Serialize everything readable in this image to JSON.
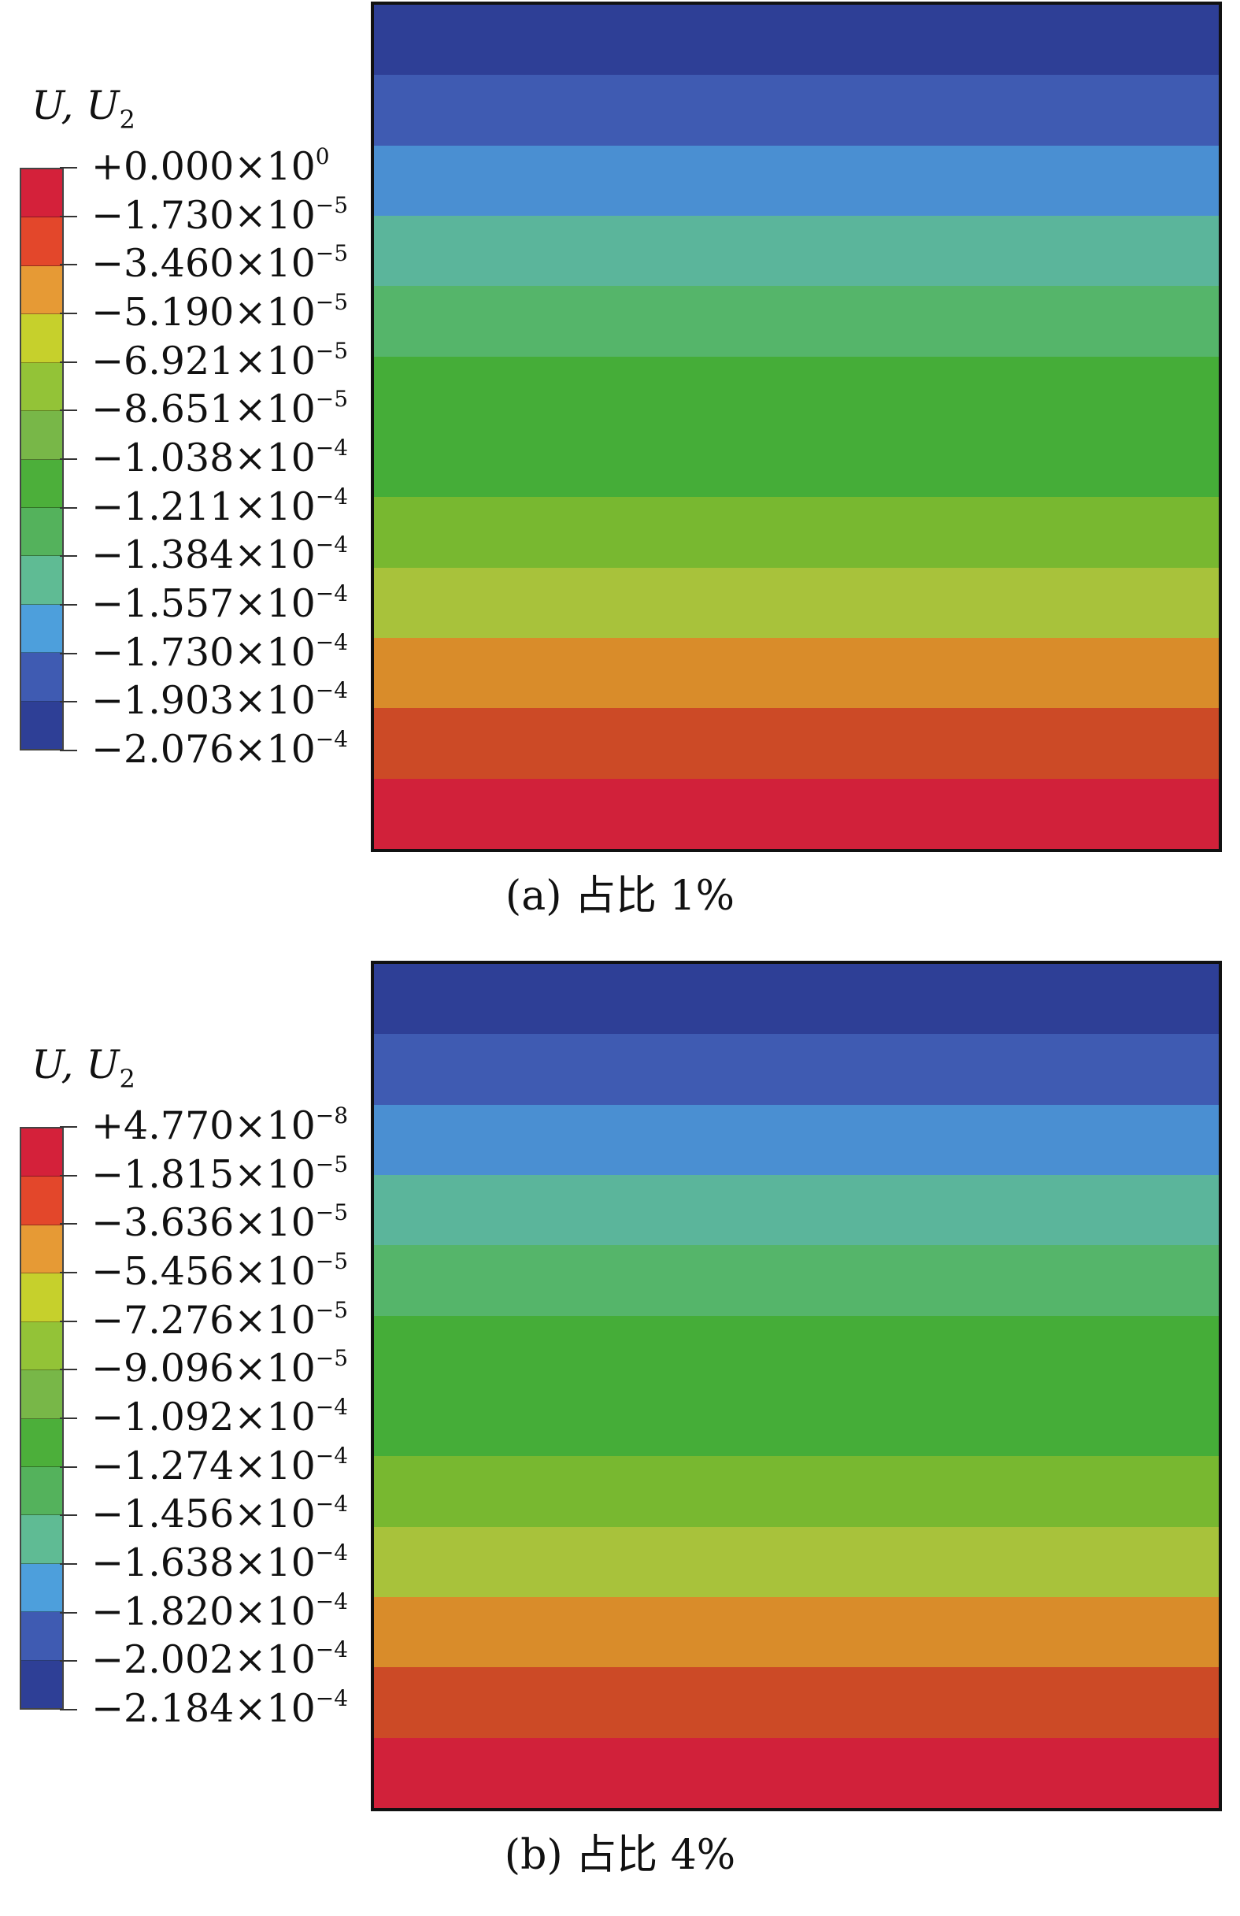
{
  "palette": [
    "#d4213a",
    "#e3472b",
    "#e69a35",
    "#c6d02c",
    "#93c337",
    "#78b748",
    "#4caf3a",
    "#54b25c",
    "#5fbb94",
    "#4d9fdc",
    "#3f5bb2",
    "#2e3f96"
  ],
  "panels": [
    {
      "legend_title": {
        "main": "U, U",
        "sub": "2"
      },
      "tick_labels": [
        {
          "mantissa": "+0.000×10",
          "exponent": "0"
        },
        {
          "mantissa": "−1.730×10",
          "exponent": "−5"
        },
        {
          "mantissa": "−3.460×10",
          "exponent": "−5"
        },
        {
          "mantissa": "−5.190×10",
          "exponent": "−5"
        },
        {
          "mantissa": "−6.921×10",
          "exponent": "−5"
        },
        {
          "mantissa": "−8.651×10",
          "exponent": "−5"
        },
        {
          "mantissa": "−1.038×10",
          "exponent": "−4"
        },
        {
          "mantissa": "−1.211×10",
          "exponent": "−4"
        },
        {
          "mantissa": "−1.384×10",
          "exponent": "−4"
        },
        {
          "mantissa": "−1.557×10",
          "exponent": "−4"
        },
        {
          "mantissa": "−1.730×10",
          "exponent": "−4"
        },
        {
          "mantissa": "−1.903×10",
          "exponent": "−4"
        },
        {
          "mantissa": "−2.076×10",
          "exponent": "−4"
        }
      ],
      "bands_top_to_bottom": [
        "#2e3f96",
        "#3f5bb2",
        "#4a8fd2",
        "#5bb59b",
        "#55b56a",
        "#45ad38",
        "#45ad38",
        "#78b830",
        "#a8c23b",
        "#d98c2a",
        "#cc4a26",
        "#d1213a"
      ],
      "caption": "(a) 占比 1%"
    },
    {
      "legend_title": {
        "main": "U, U",
        "sub": "2"
      },
      "tick_labels": [
        {
          "mantissa": "+4.770×10",
          "exponent": "−8"
        },
        {
          "mantissa": "−1.815×10",
          "exponent": "−5"
        },
        {
          "mantissa": "−3.636×10",
          "exponent": "−5"
        },
        {
          "mantissa": "−5.456×10",
          "exponent": "−5"
        },
        {
          "mantissa": "−7.276×10",
          "exponent": "−5"
        },
        {
          "mantissa": "−9.096×10",
          "exponent": "−5"
        },
        {
          "mantissa": "−1.092×10",
          "exponent": "−4"
        },
        {
          "mantissa": "−1.274×10",
          "exponent": "−4"
        },
        {
          "mantissa": "−1.456×10",
          "exponent": "−4"
        },
        {
          "mantissa": "−1.638×10",
          "exponent": "−4"
        },
        {
          "mantissa": "−1.820×10",
          "exponent": "−4"
        },
        {
          "mantissa": "−2.002×10",
          "exponent": "−4"
        },
        {
          "mantissa": "−2.184×10",
          "exponent": "−4"
        }
      ],
      "bands_top_to_bottom": [
        "#2e3f96",
        "#3f5bb2",
        "#4a8fd2",
        "#5bb59b",
        "#55b56a",
        "#45ad38",
        "#45ad38",
        "#78b830",
        "#a8c23b",
        "#d98c2a",
        "#cc4a26",
        "#d1213a"
      ],
      "caption": "(b) 占比 4%"
    }
  ]
}
